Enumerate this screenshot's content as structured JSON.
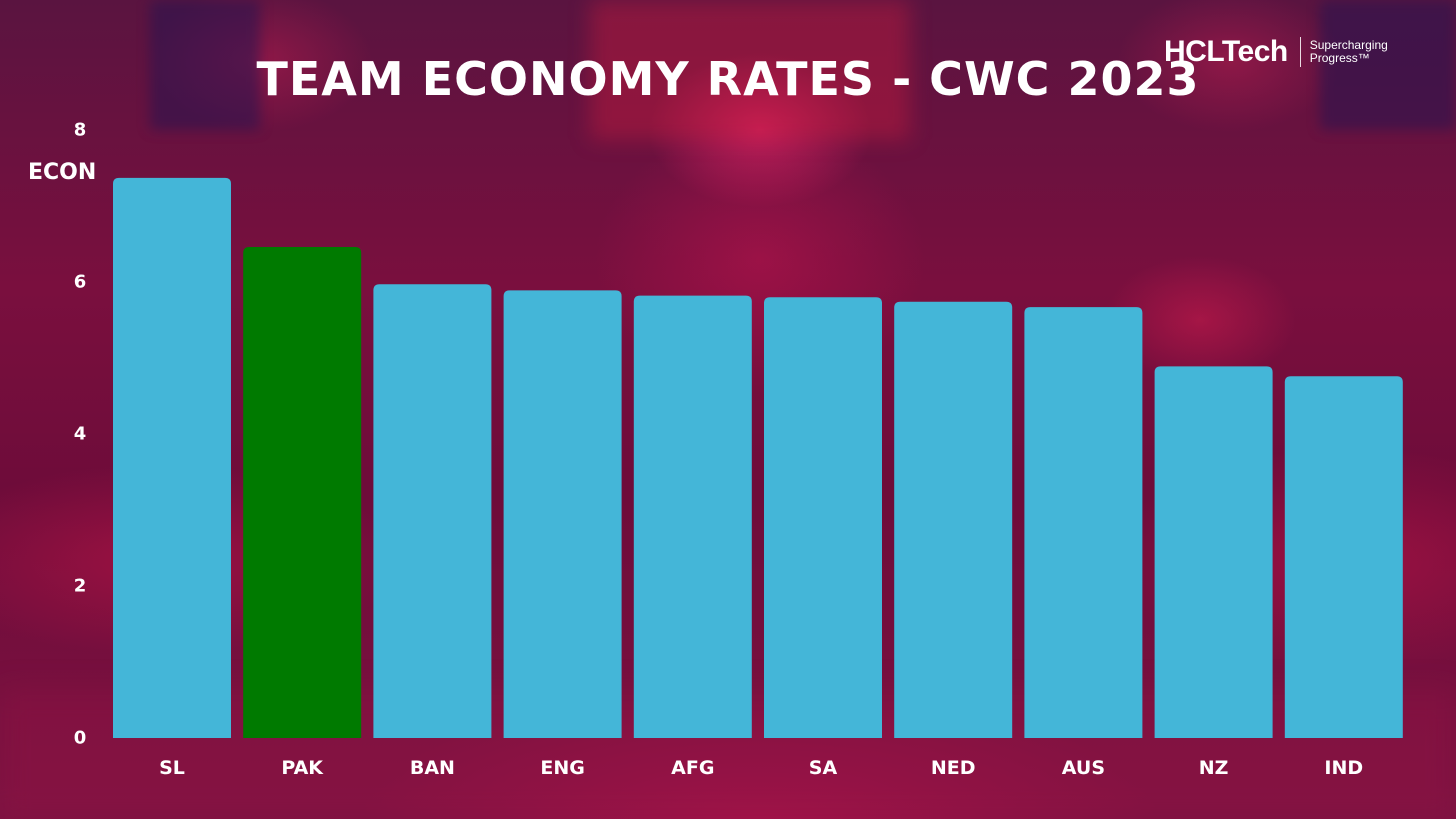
{
  "chart_data": {
    "type": "bar",
    "title": "TEAM ECONOMY RATES - CWC 2023",
    "ylabel": "ECON",
    "xlabel": "",
    "ylim": [
      0,
      8
    ],
    "yticks": [
      "0",
      "2",
      "4",
      "6",
      "8"
    ],
    "categories": [
      "SL",
      "PAK",
      "BAN",
      "ENG",
      "AFG",
      "SA",
      "NED",
      "AUS",
      "NZ",
      "IND"
    ],
    "values": [
      7.37,
      6.46,
      5.97,
      5.89,
      5.82,
      5.8,
      5.74,
      5.67,
      4.89,
      4.76
    ],
    "bar_color": "#44b6d8",
    "highlight_color": "#007a00",
    "highlight_category": "PAK",
    "grid": false,
    "legend": "none"
  },
  "branding": {
    "logo_text": "HCLTech",
    "tagline_line1": "Supercharging",
    "tagline_line2": "Progress™"
  }
}
